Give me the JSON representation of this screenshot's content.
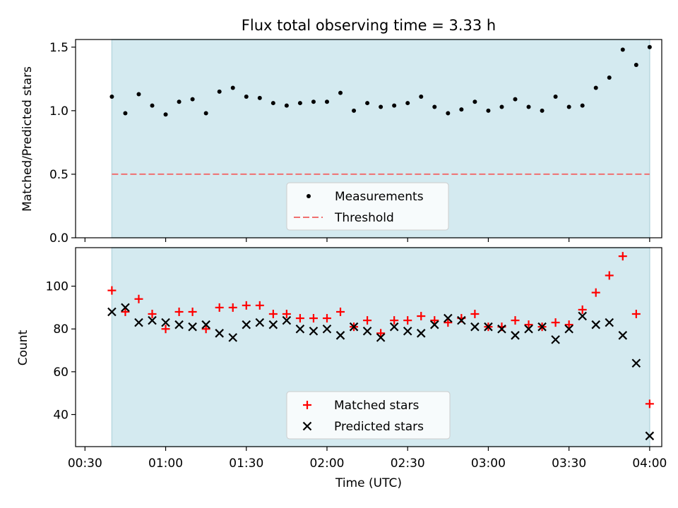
{
  "colors": {
    "shade": "#d4eaf0",
    "shade_edge": "#b8d8e0",
    "threshold": "#f07070",
    "matched": "#ff0000",
    "predicted": "#000000",
    "measurement": "#000000"
  },
  "chart_data": [
    {
      "type": "scatter",
      "title": "Flux total observing time = 3.33 h",
      "ylabel": "Matched/Predicted stars",
      "xlabel": "",
      "ylim": [
        0,
        1.56
      ],
      "yticks": [
        0.0,
        0.5,
        1.0,
        1.5
      ],
      "ytick_labels": [
        "0.0",
        "0.5",
        "1.0",
        "1.5"
      ],
      "shaded_range": [
        "00:40",
        "04:00"
      ],
      "threshold": 0.5,
      "legend_position": "lower center",
      "legend": [
        "Measurements",
        "Threshold"
      ],
      "series": [
        {
          "name": "Measurements",
          "x": [
            "00:40",
            "00:45",
            "00:50",
            "00:55",
            "01:00",
            "01:05",
            "01:10",
            "01:15",
            "01:20",
            "01:25",
            "01:30",
            "01:35",
            "01:40",
            "01:45",
            "01:50",
            "01:55",
            "02:00",
            "02:05",
            "02:10",
            "02:15",
            "02:20",
            "02:25",
            "02:30",
            "02:35",
            "02:40",
            "02:45",
            "02:50",
            "02:55",
            "03:00",
            "03:05",
            "03:10",
            "03:15",
            "03:20",
            "03:25",
            "03:30",
            "03:35",
            "03:40",
            "03:45",
            "03:50",
            "03:55",
            "04:00"
          ],
          "values": [
            1.11,
            0.98,
            1.13,
            1.04,
            0.97,
            1.07,
            1.09,
            0.98,
            1.15,
            1.18,
            1.11,
            1.1,
            1.06,
            1.04,
            1.06,
            1.07,
            1.07,
            1.14,
            1.0,
            1.06,
            1.03,
            1.04,
            1.06,
            1.11,
            1.03,
            0.98,
            1.01,
            1.07,
            1.0,
            1.03,
            1.09,
            1.03,
            1.0,
            1.11,
            1.03,
            1.04,
            1.18,
            1.26,
            1.48,
            1.36,
            1.5
          ]
        }
      ]
    },
    {
      "type": "scatter",
      "title": "",
      "ylabel": "Count",
      "xlabel": "Time (UTC)",
      "ylim": [
        25,
        118
      ],
      "yticks": [
        40,
        60,
        80,
        100
      ],
      "ytick_labels": [
        "40",
        "60",
        "80",
        "100"
      ],
      "xticks": [
        "00:30",
        "01:00",
        "01:30",
        "02:00",
        "02:30",
        "03:00",
        "03:30",
        "04:00"
      ],
      "shaded_range": [
        "00:40",
        "04:00"
      ],
      "legend_position": "lower center",
      "legend": [
        "Matched stars",
        "Predicted stars"
      ],
      "series": [
        {
          "name": "Matched stars",
          "x": [
            "00:40",
            "00:45",
            "00:50",
            "00:55",
            "01:00",
            "01:05",
            "01:10",
            "01:15",
            "01:20",
            "01:25",
            "01:30",
            "01:35",
            "01:40",
            "01:45",
            "01:50",
            "01:55",
            "02:00",
            "02:05",
            "02:10",
            "02:15",
            "02:20",
            "02:25",
            "02:30",
            "02:35",
            "02:40",
            "02:45",
            "02:50",
            "02:55",
            "03:00",
            "03:05",
            "03:10",
            "03:15",
            "03:20",
            "03:25",
            "03:30",
            "03:35",
            "03:40",
            "03:45",
            "03:50",
            "03:55",
            "04:00"
          ],
          "values": [
            98,
            88,
            94,
            87,
            80,
            88,
            88,
            80,
            90,
            90,
            91,
            91,
            87,
            87,
            85,
            85,
            85,
            88,
            81,
            84,
            78,
            84,
            84,
            86,
            84,
            83,
            85,
            87,
            81,
            81,
            84,
            82,
            81,
            83,
            82,
            89,
            97,
            105,
            114,
            87,
            45
          ]
        },
        {
          "name": "Predicted stars",
          "x": [
            "00:40",
            "00:45",
            "00:50",
            "00:55",
            "01:00",
            "01:05",
            "01:10",
            "01:15",
            "01:20",
            "01:25",
            "01:30",
            "01:35",
            "01:40",
            "01:45",
            "01:50",
            "01:55",
            "02:00",
            "02:05",
            "02:10",
            "02:15",
            "02:20",
            "02:25",
            "02:30",
            "02:35",
            "02:40",
            "02:45",
            "02:50",
            "02:55",
            "03:00",
            "03:05",
            "03:10",
            "03:15",
            "03:20",
            "03:25",
            "03:30",
            "03:35",
            "03:40",
            "03:45",
            "03:50",
            "03:55",
            "04:00"
          ],
          "values": [
            88,
            90,
            83,
            84,
            83,
            82,
            81,
            82,
            78,
            76,
            82,
            83,
            82,
            84,
            80,
            79,
            80,
            77,
            81,
            79,
            76,
            81,
            79,
            78,
            82,
            85,
            84,
            81,
            81,
            80,
            77,
            80,
            81,
            75,
            80,
            86,
            82,
            83,
            77,
            64,
            30
          ]
        }
      ]
    }
  ]
}
